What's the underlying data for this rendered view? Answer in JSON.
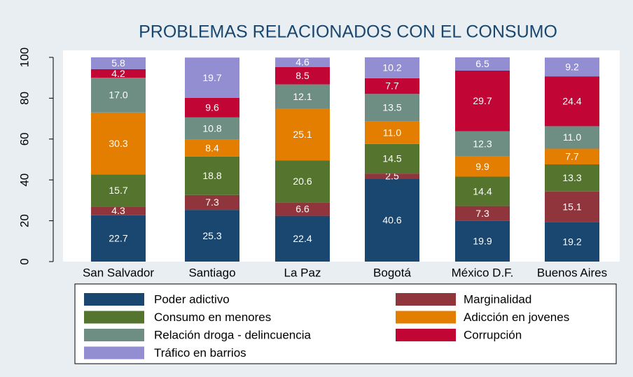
{
  "chart_data": {
    "type": "stacked_bar",
    "title": "PROBLEMAS RELACIONADOS CON EL CONSUMO",
    "categories": [
      "San Salvador",
      "Santiago",
      "La Paz",
      "Bogotá",
      "México D.F.",
      "Buenos Aires"
    ],
    "ylim": [
      0,
      100
    ],
    "yticks": [
      0,
      20,
      40,
      60,
      80,
      100
    ],
    "grid": false,
    "series": [
      {
        "name": "Poder adictivo",
        "color": "#1a476f",
        "values": [
          22.7,
          25.3,
          22.4,
          40.6,
          19.9,
          19.2
        ],
        "value_labels": [
          "22.7",
          "25.3",
          "22.4",
          "40.6",
          "19.9",
          "19.2"
        ]
      },
      {
        "name": "Marginalidad",
        "color": "#90353b",
        "values": [
          4.3,
          7.3,
          6.6,
          2.5,
          7.3,
          15.1
        ],
        "value_labels": [
          "4.3",
          "7.3",
          "6.6",
          "2.5",
          "7.3",
          "15.1"
        ]
      },
      {
        "name": "Consumo en menores",
        "color": "#55752f",
        "values": [
          15.7,
          18.8,
          20.6,
          14.5,
          14.4,
          13.3
        ],
        "value_labels": [
          "15.7",
          "18.8",
          "20.6",
          "14.5",
          "14.4",
          "13.3"
        ]
      },
      {
        "name": "Adicción en jovenes",
        "color": "#e37e00",
        "values": [
          30.3,
          8.4,
          25.1,
          11.0,
          9.9,
          7.7
        ],
        "value_labels": [
          "30.3",
          "8.4",
          "25.1",
          "11.0",
          "9.9",
          "7.7"
        ]
      },
      {
        "name": "Relación droga - delincuencia",
        "color": "#6e8e84",
        "values": [
          17.0,
          10.8,
          12.1,
          13.5,
          12.3,
          11.0
        ],
        "value_labels": [
          "17.0",
          "10.8",
          "12.1",
          "13.5",
          "12.3",
          "11.0"
        ]
      },
      {
        "name": "Corrupción",
        "color": "#c10534",
        "values": [
          4.2,
          9.6,
          8.5,
          7.7,
          29.7,
          24.4
        ],
        "value_labels": [
          "4.2",
          "9.6",
          "8.5",
          "7.7",
          "29.7",
          "24.4"
        ]
      },
      {
        "name": "Tráfico en barrios",
        "color": "#938dd2",
        "values": [
          5.8,
          19.7,
          4.6,
          10.2,
          6.5,
          9.2
        ],
        "value_labels": [
          "5.8",
          "19.7",
          "4.6",
          "10.2",
          "6.5",
          "9.2"
        ]
      }
    ],
    "legend": "bottom"
  }
}
